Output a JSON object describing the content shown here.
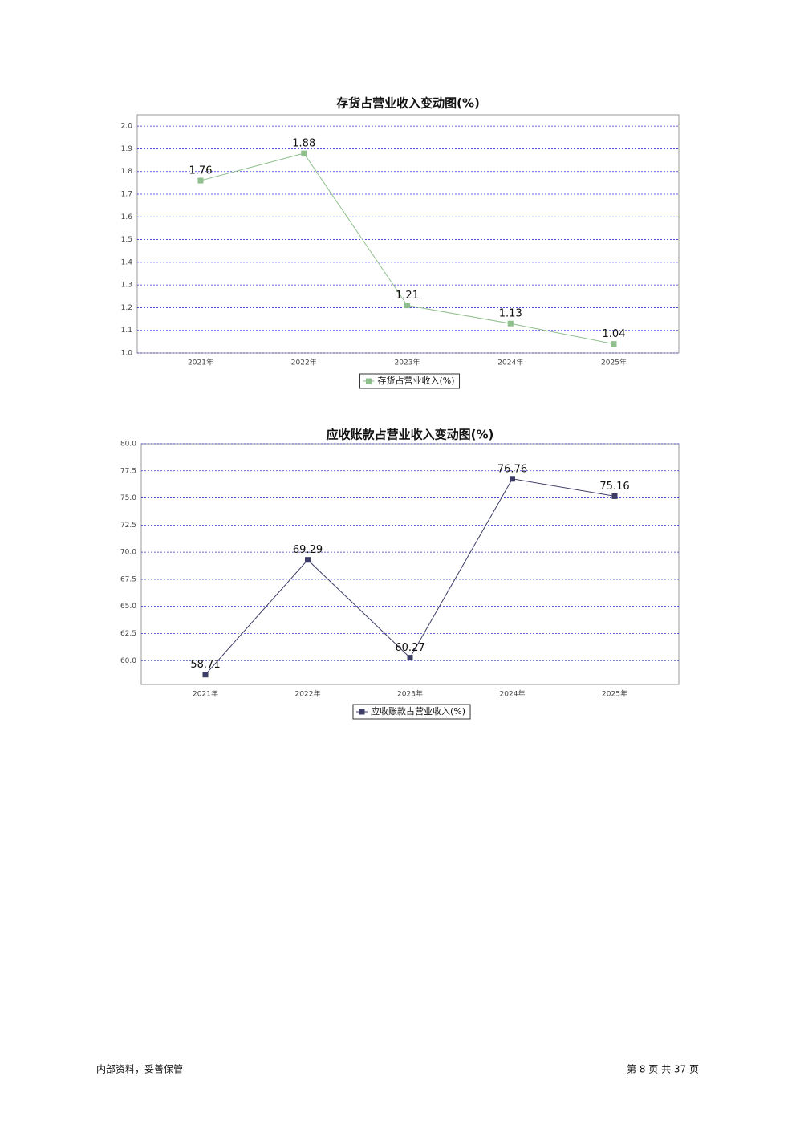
{
  "chart_data": [
    {
      "type": "line",
      "title": "存货占营业收入变动图(%)",
      "categories": [
        "2021年",
        "2022年",
        "2023年",
        "2024年",
        "2025年"
      ],
      "series": [
        {
          "name": "存货占营业收入(%)",
          "color": "#8fbf8d",
          "values": [
            1.76,
            1.88,
            1.21,
            1.13,
            1.04
          ]
        }
      ],
      "ylim": [
        1.0,
        2.05
      ],
      "yticks": [
        {
          "value": 1,
          "label": "1.0"
        },
        1.1,
        1.2,
        1.3,
        1.4,
        1.5,
        1.6,
        1.7,
        1.8,
        1.9,
        {
          "value": 2,
          "label": "2.0"
        }
      ],
      "grid": true
    },
    {
      "type": "line",
      "title": "应收账款占营业收入变动图(%)",
      "categories": [
        "2021年",
        "2022年",
        "2023年",
        "2024年",
        "2025年"
      ],
      "series": [
        {
          "name": "应收账款占营业收入(%)",
          "color": "#3c3c66",
          "values": [
            58.71,
            69.29,
            60.27,
            76.76,
            75.16
          ]
        }
      ],
      "ylim": [
        57.8,
        80
      ],
      "yticks": [
        {
          "value": 60,
          "label": "60.0"
        },
        62.5,
        {
          "value": 65,
          "label": "65.0"
        },
        67.5,
        {
          "value": 70,
          "label": "70.0"
        },
        72.5,
        {
          "value": 75,
          "label": "75.0"
        },
        77.5,
        {
          "value": 80,
          "label": "80.0"
        }
      ],
      "grid": true
    }
  ],
  "footer": {
    "left": "内部资料，妥善保管",
    "right": "第 8 页 共 37 页"
  }
}
